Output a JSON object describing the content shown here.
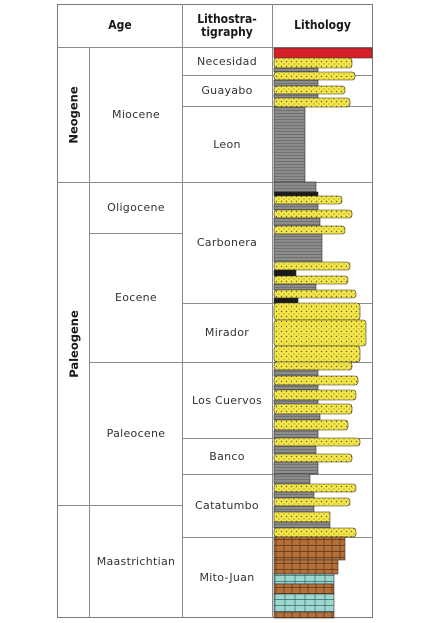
{
  "header": {
    "age": "Age",
    "lithostratigraphy_line1": "Lithostra-",
    "lithostratigraphy_line2": "tigraphy",
    "lithology": "Lithology"
  },
  "periods": [
    {
      "name": "Neogene"
    },
    {
      "name": "Paleogene"
    }
  ],
  "epochs": [
    {
      "name": "Miocene"
    },
    {
      "name": "Oligocene"
    },
    {
      "name": "Eocene"
    },
    {
      "name": "Paleocene"
    },
    {
      "name": "Maastrichtian"
    }
  ],
  "formations": [
    {
      "name": "Necesidad"
    },
    {
      "name": "Guayabo"
    },
    {
      "name": "Leon"
    },
    {
      "name": "Carbonera"
    },
    {
      "name": "Mirador"
    },
    {
      "name": "Los Cuervos"
    },
    {
      "name": "Banco"
    },
    {
      "name": "Catatumbo"
    },
    {
      "name": "Mito-Juan"
    }
  ],
  "colors": {
    "sandstone": "#f2e64a",
    "shale": "#8c8c8c",
    "coal": "#1a1a1a",
    "red_bed": "#d8202a",
    "limestone_brown": "#b5703a",
    "limestone_teal": "#9fd6cf",
    "grid": "#8a8a8a"
  }
}
